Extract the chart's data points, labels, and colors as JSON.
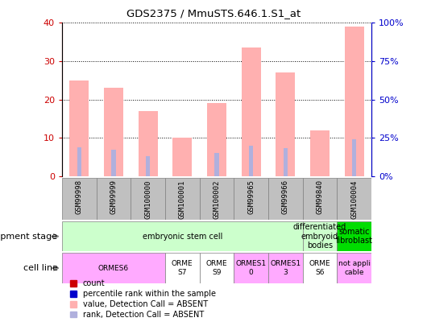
{
  "title": "GDS2375 / MmuSTS.646.1.S1_at",
  "samples": [
    "GSM99998",
    "GSM99999",
    "GSM100000",
    "GSM100001",
    "GSM100002",
    "GSM99965",
    "GSM99966",
    "GSM99840",
    "GSM100004"
  ],
  "count_values": [
    25.0,
    23.0,
    17.0,
    10.0,
    19.0,
    33.5,
    27.0,
    12.0,
    39.0
  ],
  "rank_values": [
    19.0,
    17.0,
    13.0,
    0.0,
    15.0,
    20.0,
    18.0,
    0.0,
    24.0
  ],
  "is_absent": [
    true,
    true,
    true,
    true,
    true,
    true,
    true,
    true,
    true
  ],
  "ylim_left": [
    0,
    40
  ],
  "ylim_right": [
    0,
    100
  ],
  "yticks_left": [
    0,
    10,
    20,
    30,
    40
  ],
  "yticks_right": [
    0,
    25,
    50,
    75,
    100
  ],
  "ytick_labels_left": [
    "0",
    "10",
    "20",
    "30",
    "40"
  ],
  "ytick_labels_right": [
    "0%",
    "25%",
    "50%",
    "75%",
    "100%"
  ],
  "color_count": "#cc0000",
  "color_rank": "#0000cc",
  "color_absent_count": "#ffb0b0",
  "color_absent_rank": "#b0b0dd",
  "xtick_bg": "#c0c0c0",
  "development_stages": [
    {
      "label": "embryonic stem cell",
      "start": 0,
      "end": 7,
      "color": "#ccffcc"
    },
    {
      "label": "differentiated\nembryoid\nbodies",
      "start": 7,
      "end": 8,
      "color": "#ccffcc"
    },
    {
      "label": "somatic\nfibroblast",
      "start": 8,
      "end": 9,
      "color": "#00dd00"
    }
  ],
  "cell_lines": [
    {
      "label": "ORMES6",
      "start": 0,
      "end": 3,
      "color": "#ffaaff"
    },
    {
      "label": "ORME\nS7",
      "start": 3,
      "end": 4,
      "color": "#ffffff"
    },
    {
      "label": "ORME\nS9",
      "start": 4,
      "end": 5,
      "color": "#ffffff"
    },
    {
      "label": "ORMES1\n0",
      "start": 5,
      "end": 6,
      "color": "#ffaaff"
    },
    {
      "label": "ORMES1\n3",
      "start": 6,
      "end": 7,
      "color": "#ffaaff"
    },
    {
      "label": "ORME\nS6",
      "start": 7,
      "end": 8,
      "color": "#ffffff"
    },
    {
      "label": "not appli\ncable",
      "start": 8,
      "end": 9,
      "color": "#ffaaff"
    }
  ],
  "legend_items": [
    {
      "label": "count",
      "color": "#cc0000"
    },
    {
      "label": "percentile rank within the sample",
      "color": "#0000cc"
    },
    {
      "label": "value, Detection Call = ABSENT",
      "color": "#ffb0b0"
    },
    {
      "label": "rank, Detection Call = ABSENT",
      "color": "#b0b0dd"
    }
  ]
}
